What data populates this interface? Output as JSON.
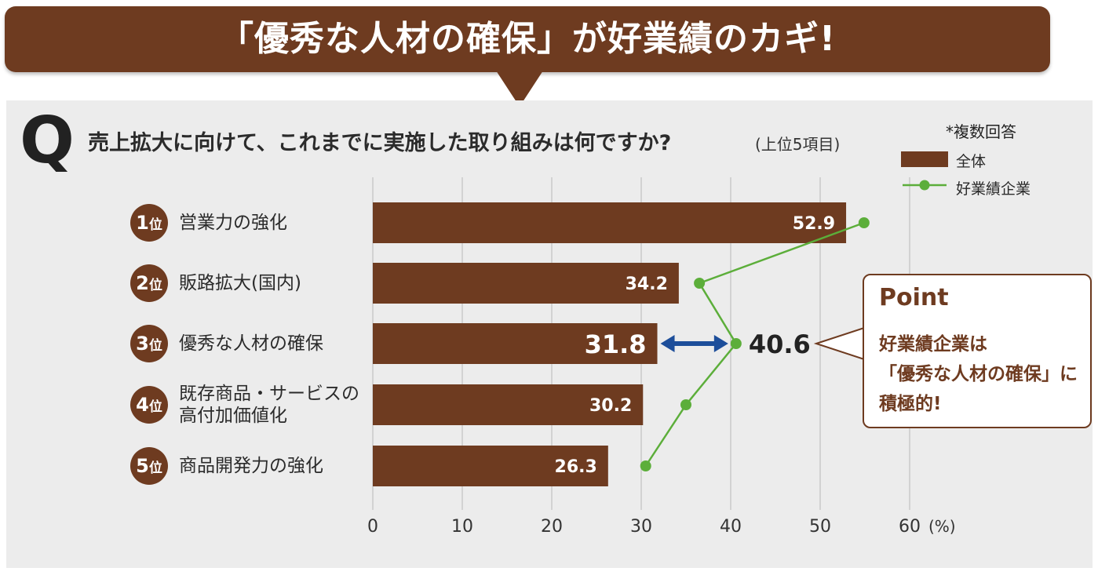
{
  "banner": {
    "title": "「優秀な人材の確保」が好業績のカギ!"
  },
  "question": {
    "mark": "Q",
    "text": "売上拡大に向けて、これまでに実施した取り組みは何ですか?",
    "sub": "(上位5項目)",
    "note": "*複数回答"
  },
  "chart_data": {
    "type": "bar",
    "orientation": "horizontal",
    "categories": [
      "営業力の強化",
      "販路拡大(国内)",
      "優秀な人材の確保",
      "既存商品・サービスの\n高付加価値化",
      "商品開発力の強化"
    ],
    "ranks": [
      "1",
      "2",
      "3",
      "4",
      "5"
    ],
    "rank_suffix": "位",
    "series": [
      {
        "name": "全体",
        "type": "bar",
        "color": "#6e3b20",
        "values": [
          52.9,
          34.2,
          31.8,
          30.2,
          26.3
        ],
        "value_labels": [
          "52.9",
          "34.2",
          "31.8",
          "30.2",
          "26.3"
        ]
      },
      {
        "name": "好業績企業",
        "type": "line",
        "color": "#5cae3a",
        "values": [
          54.9,
          36.5,
          40.6,
          35.0,
          30.5
        ]
      }
    ],
    "highlight": {
      "index": 2,
      "label": "40.6"
    },
    "xlim": [
      0,
      60
    ],
    "xticks": [
      "0",
      "10",
      "20",
      "30",
      "40",
      "50",
      "60"
    ],
    "x_unit": "(%)",
    "grid": true,
    "legend": "top-right"
  },
  "point": {
    "title": "Point",
    "text": "好業績企業は\n「優秀な人材の確保」に\n積極的!"
  }
}
